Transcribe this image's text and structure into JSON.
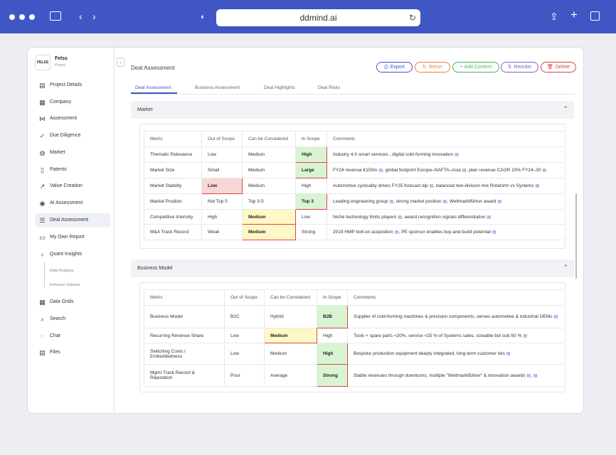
{
  "browser": {
    "url": "ddmind.ai"
  },
  "colors": {
    "accent": "#3f56c4",
    "highlight_green": "#d9f4d2",
    "highlight_red": "#f9d6d6",
    "highlight_yellow": "#fdf8c6",
    "highlight_border": "#e04545"
  },
  "brand": {
    "logo": "FELSS",
    "name": "Felss",
    "sub": "Project"
  },
  "sidebar": {
    "items": [
      {
        "label": "Project Details",
        "icon": "document-icon"
      },
      {
        "label": "Company",
        "icon": "building-icon"
      },
      {
        "label": "Assessment",
        "icon": "share-icon"
      },
      {
        "label": "Due Diligence",
        "icon": "check-circle-icon"
      },
      {
        "label": "Market",
        "icon": "globe-icon"
      },
      {
        "label": "Patents",
        "icon": "bookmark-icon"
      },
      {
        "label": "Value Creation",
        "icon": "trend-icon"
      },
      {
        "label": "AI Assessment",
        "icon": "eye-icon"
      },
      {
        "label": "Deal Assessment",
        "icon": "list-icon"
      },
      {
        "label": "My Own Report",
        "icon": "report-icon"
      },
      {
        "label": "Quant Insights",
        "icon": "bulb-icon"
      }
    ],
    "sub_items": [
      "Data Analysis",
      "Enhance Dataset"
    ],
    "bottom_items": [
      {
        "label": "Data Grids",
        "icon": "grid-icon"
      },
      {
        "label": "Search",
        "icon": "search-icon"
      },
      {
        "label": "Chat",
        "icon": "chat-icon"
      },
      {
        "label": "Files",
        "icon": "files-icon"
      }
    ]
  },
  "main": {
    "title": "Deal Assessment",
    "buttons": {
      "export": "Export",
      "rerun": "Rerun",
      "add": "+ Add Content",
      "reorder": "Reorder",
      "delete": "Delete"
    },
    "tabs": [
      "Deal Assessment",
      "Business Assessment",
      "Deal Highlights",
      "Deal Risks"
    ]
  },
  "market": {
    "title": "Market",
    "headers": [
      "Metric",
      "Out of Scope",
      "Can be Considered",
      "In Scope",
      "Comments"
    ],
    "rows": [
      {
        "metric": "Thematic Relevance",
        "out": "Low",
        "can": "Medium",
        "in": "High",
        "hl": "in",
        "comments": [
          "Industry 4.0 smart services , digital cold-forming innovation"
        ]
      },
      {
        "metric": "Market Size",
        "out": "Small",
        "can": "Medium",
        "in": "Large",
        "hl": "in",
        "comments": [
          "FY24 revenue €150m",
          ", global footprint Europe–NAFTA–Asia",
          ", plan revenue CAGR 10% FY24–30"
        ]
      },
      {
        "metric": "Market Stability",
        "out": "Low",
        "can": "Medium",
        "in": "High",
        "hl": "out",
        "comments": [
          "Automotive cyclicality drives FY25 forecast dip",
          ", balanced two-division mix Rotaform vs Systems"
        ]
      },
      {
        "metric": "Market Position",
        "out": "Not Top 5",
        "can": "Top 3-5",
        "in": "Top 3",
        "hl": "in",
        "comments": [
          "Leading engineering group",
          ", strong market position",
          ", Weltmarktführer award"
        ]
      },
      {
        "metric": "Competitive Intensity",
        "out": "High",
        "can": "Medium",
        "in": "Low",
        "hl": "can",
        "comments": [
          "Niche technology limits players",
          ", award recognition signals differentiation"
        ]
      },
      {
        "metric": "M&A Track Record",
        "out": "Weak",
        "can": "Medium",
        "in": "Strong",
        "hl": "can",
        "comments": [
          "2019 HMP bolt-on acquisition",
          ", PE sponsor enables buy-and-build potential"
        ]
      }
    ]
  },
  "business": {
    "title": "Business Model",
    "headers": [
      "Metric",
      "Out of Scope",
      "Can be Considered",
      "In Scope",
      "Comments"
    ],
    "rows": [
      {
        "metric": "Business Model",
        "out": "B2C",
        "can": "Hybrid",
        "in": "B2B",
        "hl": "in",
        "comments": [
          "Supplier of cold-forming machines & precision components, serves automotive & industrial OEMs"
        ]
      },
      {
        "metric": "Recurring Revenue Share",
        "out": "Low",
        "can": "Medium",
        "in": "High",
        "hl": "can",
        "comments": [
          "Tools + spare parts ≈20%, service ≈25 % of Systems sales, sizeable but sub-50 %"
        ]
      },
      {
        "metric": "Switching Costs / Embeddedness",
        "out": "Low",
        "can": "Medium",
        "in": "High",
        "hl": "in",
        "comments": [
          "Bespoke production equipment deeply integrated, long-term customer ties"
        ]
      },
      {
        "metric": "Mgmt Track Record & Reputation",
        "out": "Poor",
        "can": "Average",
        "in": "Strong",
        "hl": "in",
        "comments": [
          "Stable revenues through downturns, multiple \"Weltmarktführer\" & innovation awards",
          ","
        ]
      }
    ]
  }
}
